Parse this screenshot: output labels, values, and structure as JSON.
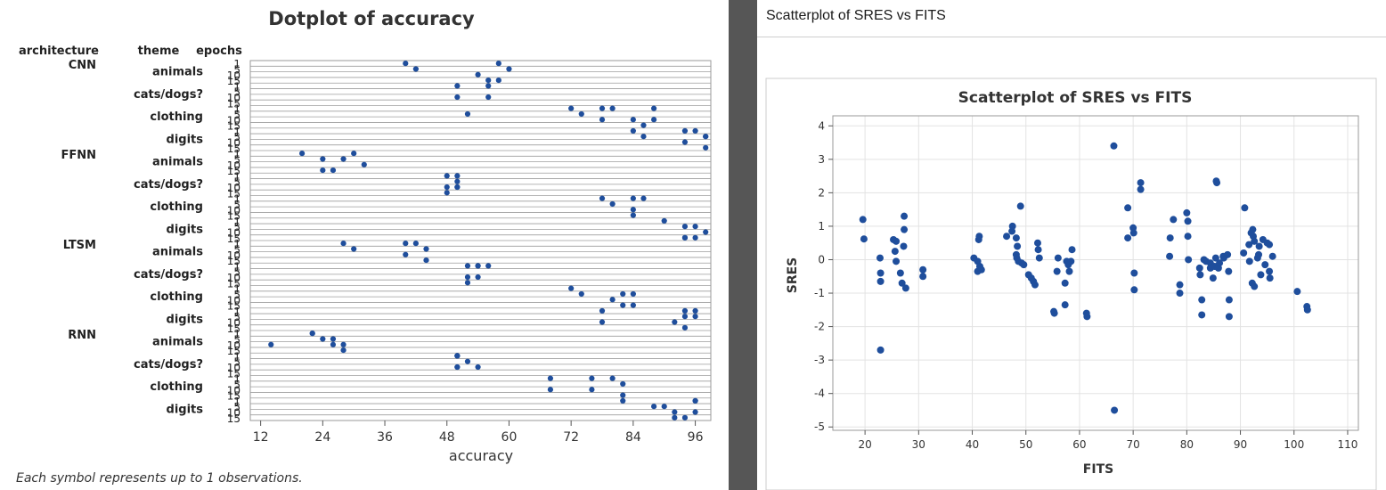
{
  "colors": {
    "marker": "#1f4e9c",
    "divider": "#565656",
    "frame": "#cccccc"
  },
  "left_panel": {
    "footer_note": "Each symbol represents up to 1 observations."
  },
  "right_panel": {
    "window_title": "Scatterplot of SRES vs FITS"
  },
  "chart_data": [
    {
      "type": "scatter",
      "title": "Dotplot of accuracy",
      "xlabel": "accuracy",
      "ylabel": "",
      "xlim": [
        10,
        99
      ],
      "xticks": [
        12,
        24,
        36,
        48,
        60,
        72,
        84,
        96
      ],
      "column_headers": [
        "architecture",
        "theme",
        "epochs"
      ],
      "groups": [
        {
          "architecture": "CNN",
          "theme": "animals",
          "epoch_labels": [
            "1",
            "5",
            "10",
            "15"
          ],
          "values": [
            40,
            42,
            54,
            56,
            58,
            60,
            58
          ]
        },
        {
          "architecture": "",
          "theme": "cats/dogs?",
          "epoch_labels": [
            "1",
            "5",
            "10",
            "15"
          ],
          "values": [
            50,
            50,
            56,
            56
          ]
        },
        {
          "architecture": "",
          "theme": "clothing",
          "epoch_labels": [
            "1",
            "5",
            "10",
            "15"
          ],
          "values": [
            72,
            74,
            78,
            78,
            80,
            52,
            84,
            86,
            88,
            88
          ]
        },
        {
          "architecture": "",
          "theme": "digits",
          "epoch_labels": [
            "1",
            "5",
            "10",
            "15"
          ],
          "values": [
            84,
            86,
            94,
            94,
            96,
            98,
            98,
            98
          ]
        },
        {
          "architecture": "FFNN",
          "theme": "animals",
          "epoch_labels": [
            "1",
            "5",
            "10",
            "15"
          ],
          "values": [
            20,
            24,
            24,
            26,
            30,
            28,
            32
          ]
        },
        {
          "architecture": "",
          "theme": "cats/dogs?",
          "epoch_labels": [
            "1",
            "5",
            "10",
            "15"
          ],
          "values": [
            48,
            48,
            50,
            50,
            50,
            48,
            50
          ]
        },
        {
          "architecture": "",
          "theme": "clothing",
          "epoch_labels": [
            "1",
            "5",
            "10",
            "15"
          ],
          "values": [
            78,
            80,
            84,
            84,
            86,
            84
          ]
        },
        {
          "architecture": "",
          "theme": "digits",
          "epoch_labels": [
            "1",
            "5",
            "10",
            "15"
          ],
          "values": [
            90,
            94,
            94,
            96,
            96,
            94,
            98
          ]
        },
        {
          "architecture": "LTSM",
          "theme": "animals",
          "epoch_labels": [
            "1",
            "5",
            "10",
            "15"
          ],
          "values": [
            28,
            30,
            40,
            40,
            42,
            44,
            44
          ]
        },
        {
          "architecture": "",
          "theme": "cats/dogs?",
          "epoch_labels": [
            "1",
            "5",
            "10",
            "15"
          ],
          "values": [
            52,
            52,
            54,
            54,
            56,
            52,
            54
          ]
        },
        {
          "architecture": "",
          "theme": "clothing",
          "epoch_labels": [
            "1",
            "5",
            "10",
            "15"
          ],
          "values": [
            72,
            74,
            80,
            82,
            82,
            84,
            84
          ]
        },
        {
          "architecture": "",
          "theme": "digits",
          "epoch_labels": [
            "1",
            "5",
            "10",
            "15"
          ],
          "values": [
            78,
            78,
            92,
            94,
            94,
            96,
            94,
            96
          ]
        },
        {
          "architecture": "RNN",
          "theme": "animals",
          "epoch_labels": [
            "1",
            "5",
            "10",
            "15"
          ],
          "values": [
            22,
            24,
            26,
            28,
            26,
            28,
            14,
            22
          ]
        },
        {
          "architecture": "",
          "theme": "cats/dogs?",
          "epoch_labels": [
            "1",
            "5",
            "10",
            "15"
          ],
          "values": [
            50,
            52,
            54,
            50,
            50,
            50,
            50
          ]
        },
        {
          "architecture": "",
          "theme": "clothing",
          "epoch_labels": [
            "1",
            "5",
            "10",
            "15"
          ],
          "values": [
            68,
            68,
            76,
            76,
            80,
            82,
            82
          ]
        },
        {
          "architecture": "",
          "theme": "digits",
          "epoch_labels": [
            "1",
            "5",
            "10",
            "15"
          ],
          "values": [
            82,
            88,
            92,
            94,
            96,
            90,
            92,
            96,
            96
          ]
        }
      ]
    },
    {
      "type": "scatter",
      "title": "Scatterplot of SRES vs FITS",
      "xlabel": "FITS",
      "ylabel": "SRES",
      "xlim": [
        14,
        112
      ],
      "ylim": [
        -5.1,
        4.3
      ],
      "xticks": [
        20,
        30,
        40,
        50,
        60,
        70,
        80,
        90,
        100,
        110
      ],
      "yticks": [
        -5,
        -4,
        -3,
        -2,
        -1,
        0,
        1,
        2,
        3,
        4
      ],
      "grid": true,
      "points": [
        [
          19.6,
          1.2
        ],
        [
          19.8,
          0.62
        ],
        [
          22.8,
          0.05
        ],
        [
          22.9,
          -0.4
        ],
        [
          22.9,
          -0.65
        ],
        [
          22.9,
          -2.7
        ],
        [
          25.3,
          0.6
        ],
        [
          25.8,
          0.55
        ],
        [
          25.6,
          0.25
        ],
        [
          25.8,
          -0.05
        ],
        [
          26.6,
          -0.4
        ],
        [
          26.9,
          -0.7
        ],
        [
          27.3,
          1.3
        ],
        [
          27.3,
          0.9
        ],
        [
          27.2,
          0.4
        ],
        [
          27.6,
          -0.85
        ],
        [
          30.8,
          -0.3
        ],
        [
          30.8,
          -0.5
        ],
        [
          40.3,
          0.05
        ],
        [
          41.0,
          -0.05
        ],
        [
          41.2,
          0.6
        ],
        [
          41.3,
          0.7
        ],
        [
          41.0,
          -0.35
        ],
        [
          41.4,
          -0.2
        ],
        [
          41.7,
          -0.3
        ],
        [
          46.4,
          0.7
        ],
        [
          47.4,
          0.85
        ],
        [
          47.5,
          1.0
        ],
        [
          48.2,
          0.65
        ],
        [
          48.4,
          0.4
        ],
        [
          48.2,
          0.15
        ],
        [
          48.3,
          0.05
        ],
        [
          48.6,
          -0.05
        ],
        [
          49.0,
          1.6
        ],
        [
          49.2,
          -0.1
        ],
        [
          49.6,
          -0.15
        ],
        [
          50.5,
          -0.45
        ],
        [
          51.0,
          -0.55
        ],
        [
          51.4,
          -0.65
        ],
        [
          51.7,
          -0.75
        ],
        [
          52.2,
          0.5
        ],
        [
          52.3,
          0.3
        ],
        [
          52.5,
          0.05
        ],
        [
          55.2,
          -1.55
        ],
        [
          55.3,
          -1.6
        ],
        [
          56.0,
          0.05
        ],
        [
          55.8,
          -0.35
        ],
        [
          57.3,
          -0.7
        ],
        [
          57.3,
          -1.35
        ],
        [
          57.6,
          -0.05
        ],
        [
          57.9,
          -0.15
        ],
        [
          58.1,
          -0.35
        ],
        [
          58.6,
          0.3
        ],
        [
          58.4,
          -0.05
        ],
        [
          61.3,
          -1.6
        ],
        [
          61.4,
          -1.7
        ],
        [
          66.4,
          3.4
        ],
        [
          66.5,
          -4.5
        ],
        [
          69.0,
          1.55
        ],
        [
          69.0,
          0.65
        ],
        [
          70.0,
          0.95
        ],
        [
          70.1,
          0.8
        ],
        [
          70.2,
          -0.4
        ],
        [
          70.2,
          -0.9
        ],
        [
          71.4,
          2.3
        ],
        [
          71.4,
          2.1
        ],
        [
          76.9,
          0.65
        ],
        [
          76.8,
          0.1
        ],
        [
          77.5,
          1.2
        ],
        [
          78.7,
          -0.75
        ],
        [
          78.7,
          -1.0
        ],
        [
          80.0,
          1.4
        ],
        [
          80.2,
          1.15
        ],
        [
          80.2,
          0.7
        ],
        [
          80.3,
          0.0
        ],
        [
          82.4,
          -0.25
        ],
        [
          82.5,
          -0.45
        ],
        [
          82.8,
          -1.2
        ],
        [
          82.8,
          -1.65
        ],
        [
          83.2,
          0.0
        ],
        [
          83.6,
          -0.05
        ],
        [
          84.4,
          -0.1
        ],
        [
          84.4,
          -0.25
        ],
        [
          84.9,
          -0.55
        ],
        [
          85.2,
          -0.2
        ],
        [
          85.4,
          0.05
        ],
        [
          85.5,
          2.35
        ],
        [
          85.6,
          2.3
        ],
        [
          85.9,
          -0.25
        ],
        [
          86.1,
          -0.1
        ],
        [
          86.8,
          0.1
        ],
        [
          86.9,
          0.05
        ],
        [
          87.6,
          0.15
        ],
        [
          87.8,
          -0.35
        ],
        [
          87.9,
          -1.2
        ],
        [
          87.9,
          -1.7
        ],
        [
          90.8,
          1.55
        ],
        [
          90.6,
          0.2
        ],
        [
          91.6,
          0.45
        ],
        [
          91.7,
          -0.05
        ],
        [
          92.0,
          0.8
        ],
        [
          92.2,
          -0.7
        ],
        [
          92.3,
          0.9
        ],
        [
          92.4,
          0.7
        ],
        [
          92.6,
          0.55
        ],
        [
          92.6,
          -0.8
        ],
        [
          93.2,
          0.05
        ],
        [
          93.4,
          0.15
        ],
        [
          93.5,
          0.4
        ],
        [
          93.8,
          -0.45
        ],
        [
          94.2,
          0.6
        ],
        [
          94.6,
          -0.15
        ],
        [
          95.0,
          0.5
        ],
        [
          95.4,
          0.45
        ],
        [
          95.4,
          -0.35
        ],
        [
          95.5,
          -0.55
        ],
        [
          96.0,
          0.1
        ],
        [
          100.6,
          -0.95
        ],
        [
          102.4,
          -1.4
        ],
        [
          102.5,
          -1.5
        ]
      ]
    }
  ]
}
